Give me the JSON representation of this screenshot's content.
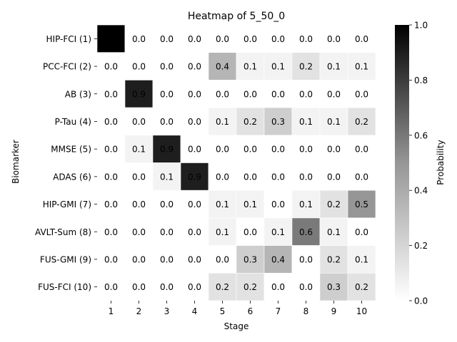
{
  "chart_data": {
    "type": "heatmap",
    "title": "Heatmap of 5_50_0",
    "xlabel": "Stage",
    "ylabel": "Biomarker",
    "x_categories": [
      "1",
      "2",
      "3",
      "4",
      "5",
      "6",
      "7",
      "8",
      "9",
      "10"
    ],
    "y_categories": [
      "HIP-FCI (1)",
      "PCC-FCI (2)",
      "AB (3)",
      "P-Tau (4)",
      "MMSE (5)",
      "ADAS (6)",
      "HIP-GMI (7)",
      "AVLT-Sum (8)",
      "FUS-GMI (9)",
      "FUS-FCI (10)"
    ],
    "values": [
      [
        1.0,
        0.0,
        0.0,
        0.0,
        0.0,
        0.0,
        0.0,
        0.0,
        0.0,
        0.0
      ],
      [
        0.0,
        0.0,
        0.0,
        0.0,
        0.4,
        0.1,
        0.1,
        0.2,
        0.1,
        0.1
      ],
      [
        0.0,
        0.9,
        0.0,
        0.0,
        0.0,
        0.0,
        0.0,
        0.0,
        0.0,
        0.0
      ],
      [
        0.0,
        0.0,
        0.0,
        0.0,
        0.1,
        0.2,
        0.3,
        0.1,
        0.1,
        0.2
      ],
      [
        0.0,
        0.1,
        0.9,
        0.0,
        0.0,
        0.0,
        0.0,
        0.0,
        0.0,
        0.0
      ],
      [
        0.0,
        0.0,
        0.1,
        0.9,
        0.0,
        0.0,
        0.0,
        0.0,
        0.0,
        0.0
      ],
      [
        0.0,
        0.0,
        0.0,
        0.0,
        0.1,
        0.1,
        0.0,
        0.1,
        0.2,
        0.5
      ],
      [
        0.0,
        0.0,
        0.0,
        0.0,
        0.1,
        0.0,
        0.1,
        0.6,
        0.1,
        0.0
      ],
      [
        0.0,
        0.0,
        0.0,
        0.0,
        0.0,
        0.3,
        0.4,
        0.0,
        0.2,
        0.1
      ],
      [
        0.0,
        0.0,
        0.0,
        0.0,
        0.2,
        0.2,
        0.0,
        0.0,
        0.3,
        0.2
      ]
    ],
    "colorbar": {
      "label": "Probability",
      "range": [
        0,
        1
      ],
      "ticks": [
        "0.0",
        "0.2",
        "0.4",
        "0.6",
        "0.8",
        "1.0"
      ],
      "colormap": "Greys",
      "low_color": "#ffffff",
      "high_color": "#000000"
    }
  }
}
